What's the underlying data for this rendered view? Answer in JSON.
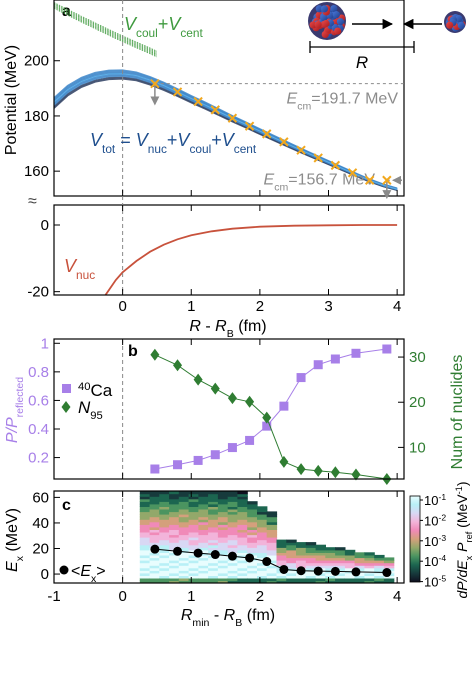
{
  "figure": {
    "panels": [
      "a",
      "b",
      "c"
    ],
    "break_mark": "≈"
  },
  "chart_data": [
    {
      "panel": "a",
      "type": "line",
      "ylabel": "Potential (MeV)",
      "xlabel_parts": [
        "R",
        " - ",
        "R",
        "B",
        " (fm)"
      ],
      "xlim": [
        -1.0,
        4.1
      ],
      "x_ticks": [
        -1,
        0,
        1,
        2,
        3,
        4
      ],
      "x_tick_labels": [
        "",
        "0",
        "1",
        "2",
        "3",
        "4"
      ],
      "y_upper": {
        "ylim": [
          151,
          222
        ],
        "ticks": [
          160,
          180,
          200
        ],
        "tick_labels": [
          "160",
          "180",
          "200"
        ]
      },
      "y_lower": {
        "ylim": [
          -21,
          6
        ],
        "ticks": [
          -20,
          0
        ],
        "tick_labels": [
          "-20",
          "0"
        ]
      },
      "series": [
        {
          "name": "Vtot",
          "label_parts": [
            "V",
            "tot",
            " = ",
            "V",
            "nuc",
            "+",
            "V",
            "coul",
            "+",
            "V",
            "cent"
          ],
          "color": "#1f5f9e",
          "x": [
            -1.0,
            -0.8,
            -0.6,
            -0.4,
            -0.2,
            0.0,
            0.2,
            0.4,
            0.6,
            0.8,
            1.0,
            1.2,
            1.4,
            1.6,
            1.8,
            2.0,
            2.2,
            2.4,
            2.6,
            2.8,
            3.0,
            3.2,
            3.4,
            3.6,
            3.8,
            4.0
          ],
          "y": [
            185.0,
            189.5,
            192.5,
            194.3,
            195.2,
            195.3,
            194.6,
            193.0,
            191.0,
            188.7,
            186.3,
            184.0,
            181.6,
            179.2,
            176.9,
            174.5,
            172.2,
            169.9,
            167.6,
            165.4,
            163.2,
            161.0,
            158.8,
            156.7,
            154.9,
            153.5
          ]
        },
        {
          "name": "Vcoul+Vcent",
          "label_parts": [
            "V",
            "coul",
            "+",
            "V",
            "cent"
          ],
          "color": "#3f9a3f",
          "x": [
            -1.0,
            -0.8,
            -0.6,
            -0.4,
            -0.2,
            0.0,
            0.2,
            0.4,
            0.5
          ],
          "y": [
            220.0,
            217.5,
            215.0,
            212.6,
            210.2,
            207.9,
            205.7,
            203.5,
            202.4
          ]
        },
        {
          "name": "Vnuc",
          "label_parts": [
            "V",
            "nuc"
          ],
          "color": "#c8523c",
          "x": [
            -0.25,
            -0.1,
            0.0,
            0.2,
            0.4,
            0.6,
            0.8,
            1.0,
            1.3,
            1.6,
            2.0,
            2.5,
            3.0,
            3.5,
            4.0
          ],
          "y": [
            -21.0,
            -16.5,
            -14.2,
            -10.8,
            -8.0,
            -5.9,
            -4.3,
            -3.1,
            -1.9,
            -1.1,
            -0.5,
            -0.2,
            -0.1,
            0.0,
            0.0
          ]
        }
      ],
      "crossings": {
        "marker": "x",
        "color": "#f2a81d",
        "x": [
          0.47,
          0.8,
          1.1,
          1.35,
          1.6,
          1.85,
          2.1,
          2.35,
          2.6,
          2.85,
          3.1,
          3.35,
          3.6,
          3.85
        ],
        "y": [
          191.7,
          188.7,
          185.2,
          182.2,
          179.2,
          176.3,
          173.5,
          170.6,
          167.6,
          164.8,
          162.1,
          159.4,
          156.7,
          156.7
        ]
      },
      "energies": [
        {
          "label": "Ecm=191.7 MeV",
          "label_parts": [
            "E",
            "cm",
            "=191.7 MeV"
          ],
          "value": 191.7,
          "x_from": 0.47
        },
        {
          "label": "Ecm=156.7 MeV",
          "label_parts": [
            "E",
            "cm",
            "=156.7 MeV"
          ],
          "value": 156.7,
          "x_from": 3.85
        }
      ],
      "inset_label": "R"
    },
    {
      "panel": "b",
      "type": "line",
      "xlim": [
        -1.0,
        4.1
      ],
      "x_ticks": [
        -1,
        0,
        1,
        2,
        3,
        4
      ],
      "ylabel_left_parts": [
        "P",
        "/",
        "P",
        "reflected"
      ],
      "ylabel_right": "Num of nuclides",
      "ylim_left": [
        0.05,
        1.03
      ],
      "ylim_right": [
        3,
        34
      ],
      "left_ticks": [
        0.2,
        0.4,
        0.6,
        0.8,
        1
      ],
      "left_tick_labels": [
        "0.2",
        "0.4",
        "0.6",
        "0.8",
        "1"
      ],
      "right_ticks": [
        10,
        20,
        30
      ],
      "right_tick_labels": [
        "10",
        "20",
        "30"
      ],
      "series": [
        {
          "name": "40Ca",
          "label_parts": [
            "40",
            "Ca"
          ],
          "axis": "left",
          "marker": "square",
          "color": "#a77fe8",
          "x": [
            0.47,
            0.8,
            1.1,
            1.35,
            1.6,
            1.85,
            2.1,
            2.35,
            2.6,
            2.85,
            3.1,
            3.4,
            3.85
          ],
          "y": [
            0.12,
            0.15,
            0.18,
            0.22,
            0.27,
            0.32,
            0.42,
            0.56,
            0.76,
            0.85,
            0.89,
            0.93,
            0.96
          ]
        },
        {
          "name": "N95",
          "label_parts": [
            "N",
            "95"
          ],
          "axis": "right",
          "marker": "diamond",
          "color": "#2f7d32",
          "x": [
            0.47,
            0.8,
            1.1,
            1.35,
            1.6,
            1.85,
            2.1,
            2.35,
            2.6,
            2.85,
            3.1,
            3.4,
            3.85
          ],
          "y": [
            30.5,
            28.2,
            25.0,
            23.0,
            20.9,
            20.1,
            16.6,
            6.8,
            5.2,
            4.8,
            4.5,
            4.0,
            3.0
          ]
        }
      ]
    },
    {
      "panel": "c",
      "type": "heatmap",
      "ylabel_parts": [
        "E",
        "x",
        " (MeV)"
      ],
      "xlabel_parts": [
        "R",
        "min",
        " - ",
        "R",
        "B",
        " (fm)"
      ],
      "xlim": [
        -1.0,
        4.1
      ],
      "ylim": [
        -7,
        65
      ],
      "x_ticks": [
        -1,
        0,
        1,
        2,
        3,
        4
      ],
      "x_tick_labels": [
        "-1",
        "0",
        "1",
        "2",
        "3",
        "4"
      ],
      "y_ticks": [
        0,
        20,
        40,
        60
      ],
      "y_tick_labels": [
        "0",
        "20",
        "40",
        "60"
      ],
      "colorbar": {
        "label_parts": [
          "dP/dE",
          "x",
          " P",
          "ref",
          " (MeV",
          "-1",
          ")"
        ],
        "scale": "log",
        "range": [
          1e-05,
          1
        ],
        "tick_labels": [
          [
            "10",
            "-1"
          ],
          [
            "10",
            "-2"
          ],
          [
            "10",
            "-3"
          ],
          [
            "10",
            "-4"
          ],
          [
            "10",
            "-5"
          ]
        ],
        "colors": [
          "#101020",
          "#173a3c",
          "#1c6650",
          "#4b9460",
          "#93a86a",
          "#d4a07c",
          "#f08ab8",
          "#f2b4da",
          "#d8d8f4",
          "#b8f0f6",
          "#e8fdfe"
        ]
      },
      "heatmap_x_range": [
        0.25,
        3.95
      ],
      "series": [
        {
          "name": "<Ex>",
          "label_parts": [
            "<",
            "E",
            "x",
            ">"
          ],
          "marker": "circle",
          "color": "#000000",
          "x": [
            0.47,
            0.8,
            1.1,
            1.35,
            1.6,
            1.85,
            2.1,
            2.35,
            2.6,
            2.85,
            3.1,
            3.4,
            3.85
          ],
          "y": [
            19.5,
            17.8,
            16.4,
            15.3,
            14.0,
            12.6,
            9.8,
            3.6,
            2.6,
            2.3,
            2.1,
            1.7,
            1.2
          ]
        }
      ]
    }
  ]
}
